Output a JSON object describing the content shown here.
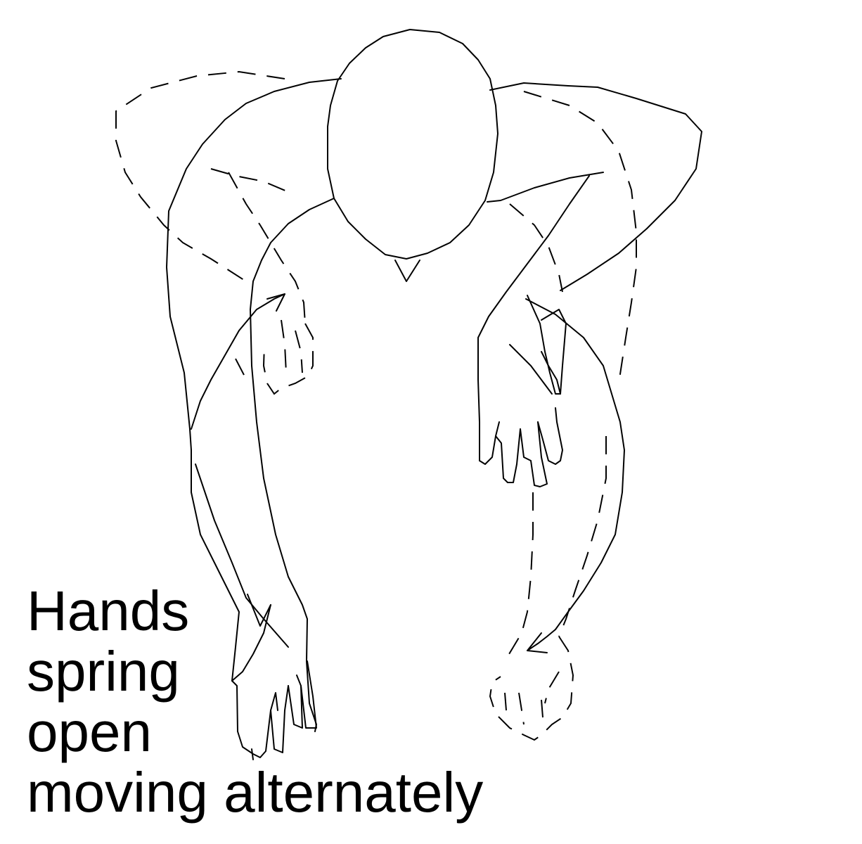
{
  "caption": {
    "lines": [
      "Hands",
      "spring",
      "open",
      "moving alternately"
    ]
  },
  "colors": {
    "ink": "#000000",
    "background": "#ffffff"
  }
}
